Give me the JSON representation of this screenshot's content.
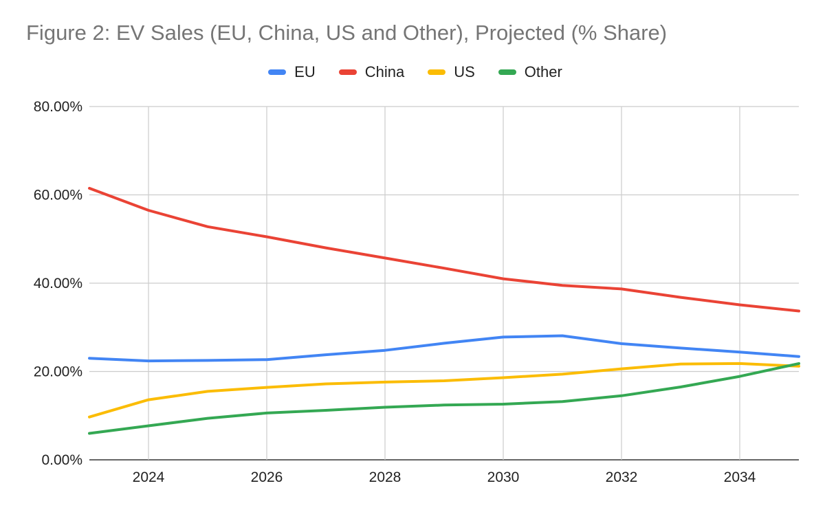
{
  "chart_data": {
    "type": "line",
    "title": "Figure 2: EV Sales (EU, China, US and Other), Projected (% Share)",
    "xlabel": "",
    "ylabel": "",
    "x": [
      2023,
      2024,
      2025,
      2026,
      2027,
      2028,
      2029,
      2030,
      2031,
      2032,
      2033,
      2034,
      2035
    ],
    "xlim": [
      2023,
      2035
    ],
    "ylim": [
      0,
      80
    ],
    "y_ticks": [
      0,
      20,
      40,
      60,
      80
    ],
    "y_tick_labels": [
      "0.00%",
      "20.00%",
      "40.00%",
      "60.00%",
      "80.00%"
    ],
    "x_ticks": [
      2024,
      2026,
      2028,
      2030,
      2032,
      2034
    ],
    "x_tick_labels": [
      "2024",
      "2026",
      "2028",
      "2030",
      "2032",
      "2034"
    ],
    "grid": true,
    "legend_position": "top-center",
    "series": [
      {
        "name": "EU",
        "color": "#4285F4",
        "values": [
          23.0,
          22.4,
          22.5,
          22.7,
          23.8,
          24.8,
          26.4,
          27.8,
          28.1,
          26.3,
          25.3,
          24.4,
          23.4
        ]
      },
      {
        "name": "China",
        "color": "#EA4335",
        "values": [
          61.5,
          56.5,
          52.8,
          50.5,
          48.0,
          45.7,
          43.4,
          41.0,
          39.5,
          38.7,
          36.8,
          35.1,
          33.7
        ]
      },
      {
        "name": "US",
        "color": "#FBBC04",
        "values": [
          9.7,
          13.6,
          15.5,
          16.4,
          17.2,
          17.6,
          17.9,
          18.6,
          19.4,
          20.6,
          21.7,
          21.8,
          21.2
        ]
      },
      {
        "name": "Other",
        "color": "#34A853",
        "values": [
          6.0,
          7.7,
          9.4,
          10.6,
          11.2,
          11.9,
          12.4,
          12.6,
          13.2,
          14.5,
          16.5,
          18.9,
          21.8
        ]
      }
    ]
  }
}
